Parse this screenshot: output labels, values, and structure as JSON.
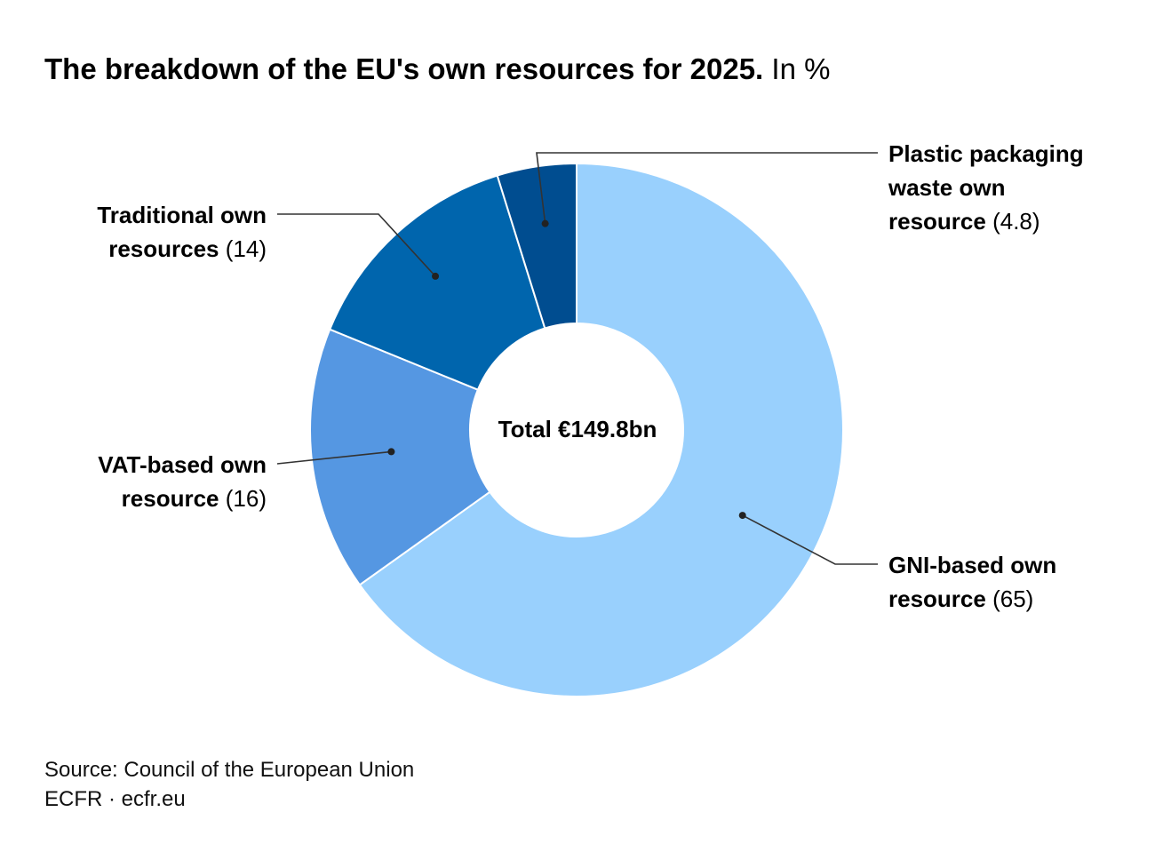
{
  "title": {
    "main": "The breakdown of the EU's own resources for 2025.",
    "unit": "In %"
  },
  "center_label": "Total €149.8bn",
  "labels": [
    {
      "key": "plastic",
      "line1": "Plastic packaging",
      "line2": "waste own",
      "line3": "resource",
      "value_text": "(4.8)"
    },
    {
      "key": "traditional",
      "line1": "Traditional own",
      "line2": "resources",
      "value_text": "(14)"
    },
    {
      "key": "vat",
      "line1": "VAT-based own",
      "line2": "resource",
      "value_text": "(16)"
    },
    {
      "key": "gni",
      "line1": "GNI-based own",
      "line2": "resource",
      "value_text": "(65)"
    }
  ],
  "footer": {
    "source": "Source: Council of the European Union",
    "credit": "ECFR · ecfr.eu"
  },
  "colors": {
    "gni": "#99d0fd",
    "vat": "#5597e2",
    "traditional": "#0065ad",
    "plastic": "#004d90",
    "leader": "#333333"
  },
  "chart_data": {
    "type": "pie",
    "donut": true,
    "start": "12 o'clock",
    "direction": "clockwise",
    "slices": [
      {
        "key": "gni",
        "name": "GNI-based own resource",
        "value": 65
      },
      {
        "key": "vat",
        "name": "VAT-based own resource",
        "value": 16
      },
      {
        "key": "traditional",
        "name": "Traditional own resources",
        "value": 14
      },
      {
        "key": "plastic",
        "name": "Plastic packaging waste own resource",
        "value": 4.8
      }
    ],
    "total_label": "Total €149.8bn"
  }
}
